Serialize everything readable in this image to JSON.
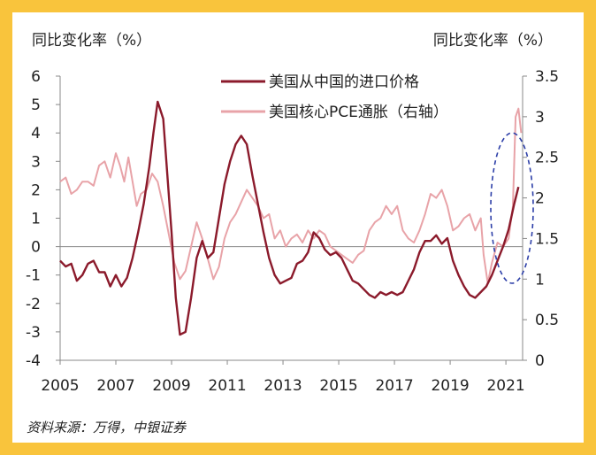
{
  "chart_data": {
    "type": "line",
    "ylabel_left": "同比变化率（%）",
    "ylabel_right": "同比变化率（%）",
    "x_ticks": [
      "2005",
      "2007",
      "2009",
      "2011",
      "2013",
      "2015",
      "2017",
      "2019",
      "2021"
    ],
    "x_range": [
      2005,
      2021.6
    ],
    "y_left": {
      "range": [
        -4,
        6
      ],
      "ticks": [
        "-4",
        "-3",
        "-2",
        "-1",
        "0",
        "1",
        "2",
        "3",
        "4",
        "5",
        "6"
      ]
    },
    "y_right": {
      "range": [
        0,
        3.5
      ],
      "ticks": [
        "0",
        "0.5",
        "1",
        "1.5",
        "2",
        "2.5",
        "3",
        "3.5"
      ]
    },
    "legend_position": "top-center",
    "series": [
      {
        "name": "美国从中国的进口价格",
        "axis": "left",
        "color": "#8b1a2b",
        "points": [
          [
            2005.0,
            -0.5
          ],
          [
            2005.2,
            -0.7
          ],
          [
            2005.4,
            -0.6
          ],
          [
            2005.6,
            -1.2
          ],
          [
            2005.8,
            -1.0
          ],
          [
            2006.0,
            -0.6
          ],
          [
            2006.2,
            -0.5
          ],
          [
            2006.4,
            -0.9
          ],
          [
            2006.6,
            -0.9
          ],
          [
            2006.8,
            -1.4
          ],
          [
            2007.0,
            -1.0
          ],
          [
            2007.2,
            -1.4
          ],
          [
            2007.4,
            -1.1
          ],
          [
            2007.6,
            -0.4
          ],
          [
            2007.8,
            0.5
          ],
          [
            2008.0,
            1.5
          ],
          [
            2008.2,
            2.8
          ],
          [
            2008.35,
            4.0
          ],
          [
            2008.5,
            5.1
          ],
          [
            2008.7,
            4.5
          ],
          [
            2008.85,
            2.5
          ],
          [
            2009.0,
            0.5
          ],
          [
            2009.15,
            -1.8
          ],
          [
            2009.3,
            -3.1
          ],
          [
            2009.5,
            -3.0
          ],
          [
            2009.7,
            -1.8
          ],
          [
            2009.9,
            -0.4
          ],
          [
            2010.1,
            0.2
          ],
          [
            2010.3,
            -0.4
          ],
          [
            2010.5,
            -0.2
          ],
          [
            2010.7,
            1.0
          ],
          [
            2010.9,
            2.2
          ],
          [
            2011.1,
            3.0
          ],
          [
            2011.3,
            3.6
          ],
          [
            2011.5,
            3.9
          ],
          [
            2011.7,
            3.6
          ],
          [
            2011.9,
            2.5
          ],
          [
            2012.1,
            1.5
          ],
          [
            2012.3,
            0.5
          ],
          [
            2012.5,
            -0.4
          ],
          [
            2012.7,
            -1.0
          ],
          [
            2012.9,
            -1.3
          ],
          [
            2013.1,
            -1.2
          ],
          [
            2013.3,
            -1.1
          ],
          [
            2013.5,
            -0.6
          ],
          [
            2013.7,
            -0.5
          ],
          [
            2013.9,
            -0.2
          ],
          [
            2014.1,
            0.5
          ],
          [
            2014.3,
            0.3
          ],
          [
            2014.5,
            -0.1
          ],
          [
            2014.7,
            -0.3
          ],
          [
            2014.9,
            -0.2
          ],
          [
            2015.1,
            -0.4
          ],
          [
            2015.3,
            -0.8
          ],
          [
            2015.5,
            -1.2
          ],
          [
            2015.7,
            -1.3
          ],
          [
            2015.9,
            -1.5
          ],
          [
            2016.1,
            -1.7
          ],
          [
            2016.3,
            -1.8
          ],
          [
            2016.5,
            -1.6
          ],
          [
            2016.7,
            -1.7
          ],
          [
            2016.9,
            -1.6
          ],
          [
            2017.1,
            -1.7
          ],
          [
            2017.3,
            -1.6
          ],
          [
            2017.5,
            -1.2
          ],
          [
            2017.7,
            -0.8
          ],
          [
            2017.9,
            -0.2
          ],
          [
            2018.1,
            0.2
          ],
          [
            2018.3,
            0.2
          ],
          [
            2018.5,
            0.4
          ],
          [
            2018.7,
            0.1
          ],
          [
            2018.9,
            0.3
          ],
          [
            2019.1,
            -0.5
          ],
          [
            2019.3,
            -1.0
          ],
          [
            2019.5,
            -1.4
          ],
          [
            2019.7,
            -1.7
          ],
          [
            2019.9,
            -1.8
          ],
          [
            2020.1,
            -1.6
          ],
          [
            2020.3,
            -1.4
          ],
          [
            2020.5,
            -1.0
          ],
          [
            2020.7,
            -0.5
          ],
          [
            2020.9,
            0.0
          ],
          [
            2021.1,
            0.6
          ],
          [
            2021.3,
            1.5
          ],
          [
            2021.45,
            2.1
          ]
        ]
      },
      {
        "name": "美国核心PCE通胀（右轴）",
        "axis": "right",
        "color": "#e8a3a8",
        "points": [
          [
            2005.0,
            2.2
          ],
          [
            2005.2,
            2.25
          ],
          [
            2005.4,
            2.05
          ],
          [
            2005.6,
            2.1
          ],
          [
            2005.8,
            2.2
          ],
          [
            2006.0,
            2.2
          ],
          [
            2006.2,
            2.15
          ],
          [
            2006.4,
            2.4
          ],
          [
            2006.6,
            2.45
          ],
          [
            2006.8,
            2.25
          ],
          [
            2007.0,
            2.55
          ],
          [
            2007.15,
            2.4
          ],
          [
            2007.3,
            2.2
          ],
          [
            2007.45,
            2.5
          ],
          [
            2007.6,
            2.2
          ],
          [
            2007.75,
            1.9
          ],
          [
            2007.9,
            2.05
          ],
          [
            2008.1,
            2.1
          ],
          [
            2008.3,
            2.3
          ],
          [
            2008.5,
            2.2
          ],
          [
            2008.7,
            1.9
          ],
          [
            2008.9,
            1.55
          ],
          [
            2009.1,
            1.2
          ],
          [
            2009.3,
            1.0
          ],
          [
            2009.5,
            1.1
          ],
          [
            2009.7,
            1.4
          ],
          [
            2009.9,
            1.7
          ],
          [
            2010.1,
            1.5
          ],
          [
            2010.3,
            1.25
          ],
          [
            2010.5,
            1.0
          ],
          [
            2010.7,
            1.15
          ],
          [
            2010.9,
            1.5
          ],
          [
            2011.1,
            1.7
          ],
          [
            2011.3,
            1.8
          ],
          [
            2011.5,
            1.95
          ],
          [
            2011.7,
            2.1
          ],
          [
            2011.9,
            2.0
          ],
          [
            2012.1,
            1.9
          ],
          [
            2012.3,
            1.75
          ],
          [
            2012.5,
            1.8
          ],
          [
            2012.7,
            1.5
          ],
          [
            2012.9,
            1.6
          ],
          [
            2013.1,
            1.4
          ],
          [
            2013.3,
            1.5
          ],
          [
            2013.5,
            1.55
          ],
          [
            2013.7,
            1.45
          ],
          [
            2013.9,
            1.6
          ],
          [
            2014.1,
            1.5
          ],
          [
            2014.3,
            1.6
          ],
          [
            2014.5,
            1.55
          ],
          [
            2014.7,
            1.4
          ],
          [
            2014.9,
            1.35
          ],
          [
            2015.1,
            1.3
          ],
          [
            2015.3,
            1.25
          ],
          [
            2015.5,
            1.2
          ],
          [
            2015.7,
            1.3
          ],
          [
            2015.9,
            1.35
          ],
          [
            2016.1,
            1.6
          ],
          [
            2016.3,
            1.7
          ],
          [
            2016.5,
            1.75
          ],
          [
            2016.7,
            1.9
          ],
          [
            2016.9,
            1.8
          ],
          [
            2017.1,
            1.9
          ],
          [
            2017.3,
            1.6
          ],
          [
            2017.5,
            1.5
          ],
          [
            2017.7,
            1.45
          ],
          [
            2017.9,
            1.6
          ],
          [
            2018.1,
            1.8
          ],
          [
            2018.3,
            2.05
          ],
          [
            2018.5,
            2.0
          ],
          [
            2018.7,
            2.1
          ],
          [
            2018.9,
            1.9
          ],
          [
            2019.1,
            1.6
          ],
          [
            2019.3,
            1.65
          ],
          [
            2019.5,
            1.75
          ],
          [
            2019.7,
            1.8
          ],
          [
            2019.9,
            1.6
          ],
          [
            2020.1,
            1.75
          ],
          [
            2020.2,
            1.3
          ],
          [
            2020.35,
            0.95
          ],
          [
            2020.5,
            1.2
          ],
          [
            2020.7,
            1.45
          ],
          [
            2020.9,
            1.4
          ],
          [
            2021.1,
            1.5
          ],
          [
            2021.25,
            1.9
          ],
          [
            2021.35,
            3.0
          ],
          [
            2021.45,
            3.1
          ],
          [
            2021.55,
            2.8
          ]
        ]
      }
    ]
  },
  "source_text": "资料来源：万得，中银证券"
}
